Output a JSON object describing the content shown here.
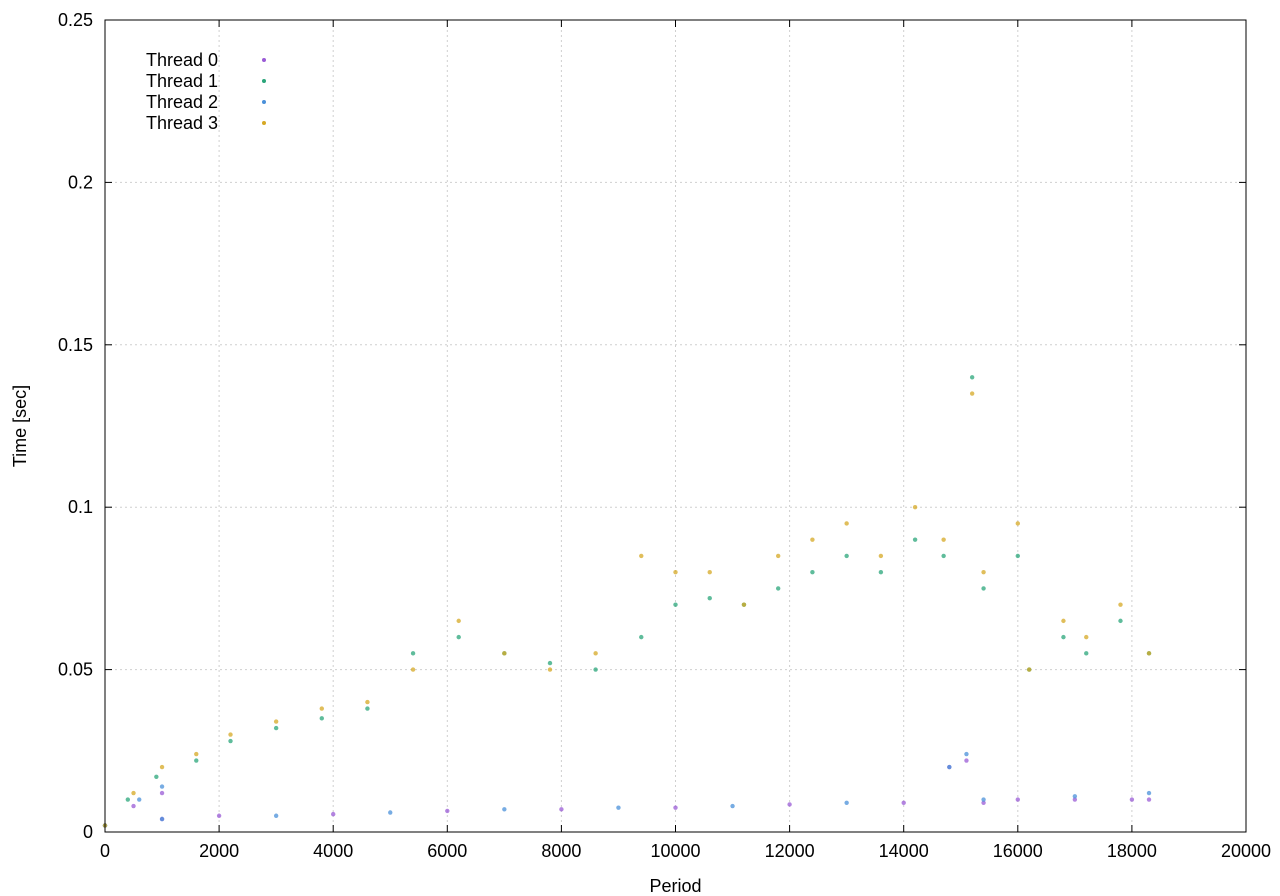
{
  "chart_data": {
    "type": "scatter",
    "xlabel": "Period",
    "ylabel": "Time [sec]",
    "xlim": [
      0,
      20000
    ],
    "ylim": [
      0,
      0.25
    ],
    "x_ticks": [
      0,
      2000,
      4000,
      6000,
      8000,
      10000,
      12000,
      14000,
      16000,
      18000,
      20000
    ],
    "x_tick_labels": [
      "0",
      "2000",
      "4000",
      "6000",
      "8000",
      "10000",
      "12000",
      "14000",
      "16000",
      "18000",
      "20000"
    ],
    "y_ticks": [
      0,
      0.05,
      0.1,
      0.15,
      0.2,
      0.25
    ],
    "y_tick_labels": [
      "0",
      "0.05",
      "0.1",
      "0.15",
      "0.2",
      "0.25"
    ],
    "grid": true,
    "legend_position": "top-left",
    "series": [
      {
        "name": "Thread 0",
        "color": "#9a5bd6",
        "x": [
          0,
          500,
          1000,
          1000,
          2000,
          4000,
          6000,
          8000,
          10000,
          12000,
          14000,
          14800,
          15100,
          15400,
          16000,
          17000,
          18000,
          18300
        ],
        "y": [
          0.002,
          0.008,
          0.012,
          0.004,
          0.005,
          0.0055,
          0.0065,
          0.007,
          0.0075,
          0.0085,
          0.009,
          0.02,
          0.022,
          0.009,
          0.01,
          0.01,
          0.01,
          0.01
        ]
      },
      {
        "name": "Thread 1",
        "color": "#2aa57a",
        "x": [
          0,
          400,
          900,
          1600,
          2200,
          3000,
          3800,
          4600,
          5400,
          6200,
          7000,
          7800,
          8600,
          9400,
          10000,
          10600,
          11200,
          11800,
          12400,
          13000,
          13600,
          14200,
          14700,
          15200,
          15400,
          16000,
          16200,
          16800,
          17200,
          17800,
          18300
        ],
        "y": [
          0.002,
          0.01,
          0.017,
          0.022,
          0.028,
          0.032,
          0.035,
          0.038,
          0.055,
          0.06,
          0.055,
          0.052,
          0.05,
          0.06,
          0.07,
          0.072,
          0.07,
          0.075,
          0.08,
          0.085,
          0.08,
          0.09,
          0.085,
          0.14,
          0.075,
          0.085,
          0.05,
          0.06,
          0.055,
          0.065,
          0.055
        ]
      },
      {
        "name": "Thread 2",
        "color": "#4a90d9",
        "x": [
          0,
          600,
          1000,
          1000,
          3000,
          5000,
          7000,
          9000,
          11000,
          13000,
          14800,
          15100,
          15400,
          17000,
          18300
        ],
        "y": [
          0.002,
          0.01,
          0.014,
          0.004,
          0.005,
          0.006,
          0.007,
          0.0075,
          0.008,
          0.009,
          0.02,
          0.024,
          0.01,
          0.011,
          0.012
        ]
      },
      {
        "name": "Thread 3",
        "color": "#d6a824",
        "x": [
          0,
          500,
          1000,
          1600,
          2200,
          3000,
          3800,
          4600,
          5400,
          6200,
          7000,
          7800,
          8600,
          9400,
          10000,
          10600,
          11200,
          11800,
          12400,
          13000,
          13600,
          14200,
          14700,
          15200,
          15400,
          16000,
          16200,
          16800,
          17200,
          17800,
          18300
        ],
        "y": [
          0.002,
          0.012,
          0.02,
          0.024,
          0.03,
          0.034,
          0.038,
          0.04,
          0.05,
          0.065,
          0.055,
          0.05,
          0.055,
          0.085,
          0.08,
          0.08,
          0.07,
          0.085,
          0.09,
          0.095,
          0.085,
          0.1,
          0.09,
          0.135,
          0.08,
          0.095,
          0.05,
          0.065,
          0.06,
          0.07,
          0.055
        ]
      }
    ]
  }
}
